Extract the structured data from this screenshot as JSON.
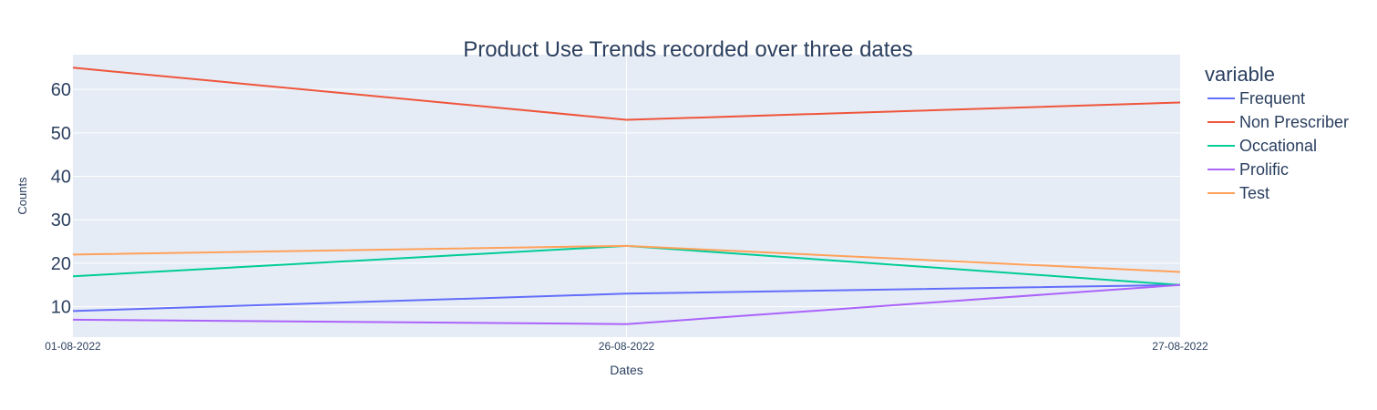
{
  "chart_data": {
    "type": "line",
    "title": "Product Use Trends recorded over three dates",
    "xlabel": "Dates",
    "ylabel": "Counts",
    "x": [
      "01-08-2022",
      "26-08-2022",
      "27-08-2022"
    ],
    "y_ticks": [
      10,
      20,
      30,
      40,
      50,
      60
    ],
    "ylim": [
      3,
      68
    ],
    "grid": true,
    "legend_title": "variable",
    "legend_position": "right",
    "series": [
      {
        "name": "Frequent",
        "color": "#636efa",
        "values": [
          9,
          13,
          15
        ]
      },
      {
        "name": "Non Prescriber",
        "color": "#ef553b",
        "values": [
          65,
          53,
          57
        ]
      },
      {
        "name": "Occational",
        "color": "#00cc96",
        "values": [
          17,
          24,
          15
        ]
      },
      {
        "name": "Prolific",
        "color": "#ab63fa",
        "values": [
          7,
          6,
          15
        ]
      },
      {
        "name": "Test",
        "color": "#ffa15a",
        "values": [
          22,
          24,
          18
        ]
      }
    ],
    "colors": {
      "plot_background": "#e5ecf6",
      "grid": "#ffffff",
      "text": "#2a3f5f"
    }
  }
}
